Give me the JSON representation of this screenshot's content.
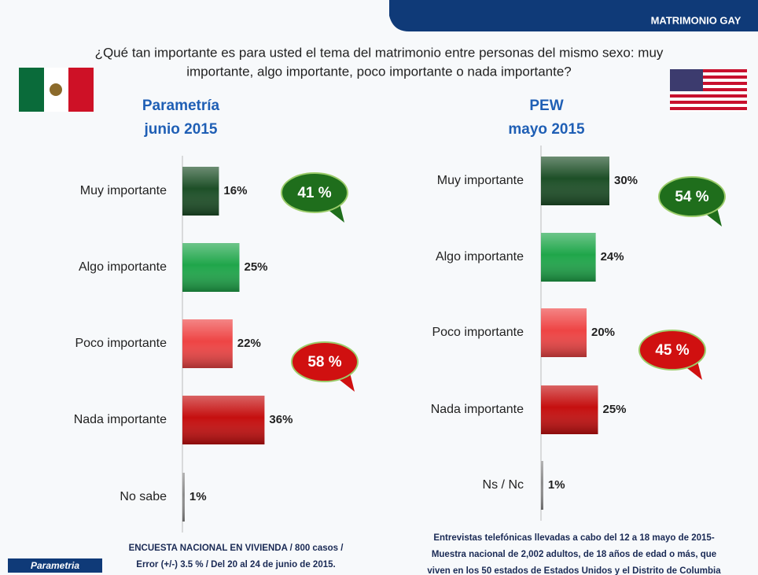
{
  "header": "MATRIMONIO  GAY",
  "question": [
    "¿Qué tan importante es para usted el tema del matrimonio entre personas del mismo sexo: muy",
    "importante, algo importante, poco importante o nada importante?"
  ],
  "brand": "Parametria",
  "chart_data": [
    {
      "type": "bar",
      "orientation": "horizontal",
      "title": "Parametría",
      "subtitle": "junio 2015",
      "categories": [
        "Muy importante",
        "Algo importante",
        "Poco importante",
        "Nada importante",
        "No sabe"
      ],
      "values": [
        16,
        25,
        22,
        36,
        1
      ],
      "value_labels": [
        "16%",
        "25%",
        "22%",
        "36%",
        "1%"
      ],
      "colors": [
        "#1d4f27",
        "#1fa64a",
        "#ee4444",
        "#c50f0f",
        "#8a8a8a"
      ],
      "annotations": [
        {
          "text": "41 %",
          "color": "#1f6e1c"
        },
        {
          "text": "58 %",
          "color": "#d01010"
        }
      ],
      "note": [
        "ENCUESTA NACIONAL  EN VIVIENDA / 800 casos /",
        "Error (+/-) 3.5 % / Del 20 al 24 de junio de 2015."
      ]
    },
    {
      "type": "bar",
      "orientation": "horizontal",
      "title": "PEW",
      "subtitle": "mayo 2015",
      "categories": [
        "Muy importante",
        "Algo importante",
        "Poco importante",
        "Nada importante",
        "Ns / Nc"
      ],
      "values": [
        30,
        24,
        20,
        25,
        1
      ],
      "value_labels": [
        "30%",
        "24%",
        "20%",
        "25%",
        "1%"
      ],
      "colors": [
        "#1d4f27",
        "#1fa64a",
        "#ee4444",
        "#c50f0f",
        "#8a8a8a"
      ],
      "annotations": [
        {
          "text": "54 %",
          "color": "#1f6e1c"
        },
        {
          "text": "45 %",
          "color": "#d01010"
        }
      ],
      "note": [
        "Entrevistas telefónicas llevadas a cabo del 12 a 18 mayo de 2015-",
        "Muestra nacional de 2,002 adultos, de 18 años de edad o más, que",
        "viven en los 50 estados de Estados Unidos y el Distrito de Columbia"
      ]
    }
  ]
}
